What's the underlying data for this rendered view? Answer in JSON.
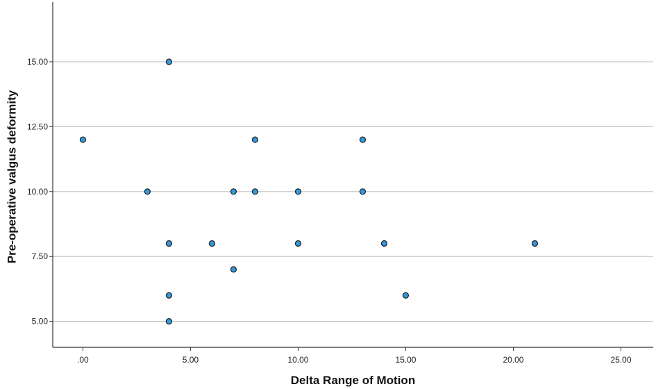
{
  "chart_data": {
    "type": "scatter",
    "title": "",
    "xlabel": "Delta Range of Motion",
    "ylabel": "Pre-operative valgus deformity",
    "xlim": [
      -1.4,
      26.5
    ],
    "ylim": [
      4.0,
      17.3
    ],
    "x_ticks": [
      {
        "value": 0,
        "label": ".00"
      },
      {
        "value": 5,
        "label": "5.00"
      },
      {
        "value": 10,
        "label": "10.00"
      },
      {
        "value": 15,
        "label": "15.00"
      },
      {
        "value": 20,
        "label": "20.00"
      },
      {
        "value": 25,
        "label": "25.00"
      }
    ],
    "y_ticks": [
      {
        "value": 5,
        "label": "5.00"
      },
      {
        "value": 7.5,
        "label": "7.50"
      },
      {
        "value": 10,
        "label": "10.00"
      },
      {
        "value": 12.5,
        "label": "12.50"
      },
      {
        "value": 15,
        "label": "15.00"
      }
    ],
    "grid": "horizontal",
    "marker_color": "#3399dd",
    "marker_edge_color": "#1a1a1a",
    "points": [
      {
        "x": 0,
        "y": 12
      },
      {
        "x": 3,
        "y": 10
      },
      {
        "x": 4,
        "y": 15
      },
      {
        "x": 4,
        "y": 8
      },
      {
        "x": 4,
        "y": 6
      },
      {
        "x": 4,
        "y": 5
      },
      {
        "x": 6,
        "y": 8
      },
      {
        "x": 7,
        "y": 10
      },
      {
        "x": 7,
        "y": 7
      },
      {
        "x": 8,
        "y": 12
      },
      {
        "x": 8,
        "y": 10
      },
      {
        "x": 10,
        "y": 10
      },
      {
        "x": 10,
        "y": 8
      },
      {
        "x": 13,
        "y": 12
      },
      {
        "x": 13,
        "y": 10
      },
      {
        "x": 14,
        "y": 8
      },
      {
        "x": 15,
        "y": 6
      },
      {
        "x": 21,
        "y": 8
      }
    ]
  }
}
